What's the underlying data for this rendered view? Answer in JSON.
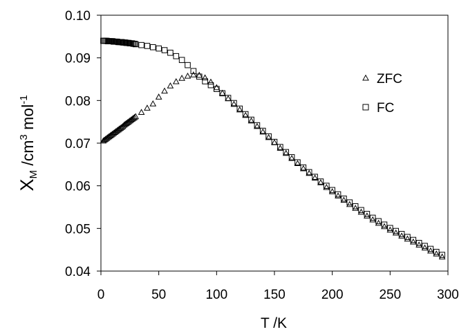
{
  "chart_data": {
    "type": "scatter",
    "title": "",
    "xlabel": "T /K",
    "ylabel": {
      "base": "X",
      "sub": "M",
      "mid": " /cm",
      "sup1": "3",
      "tail": "  mol",
      "sup2": "-1"
    },
    "xlim": [
      0,
      300
    ],
    "ylim": [
      0.04,
      0.1
    ],
    "x_ticks": [
      "0",
      "50",
      "100",
      "150",
      "200",
      "250",
      "300"
    ],
    "x_tick_values": [
      0,
      50,
      100,
      150,
      200,
      250,
      300
    ],
    "y_ticks": [
      "0.04",
      "0.05",
      "0.06",
      "0.07",
      "0.08",
      "0.09",
      "0.10"
    ],
    "y_tick_values": [
      0.04,
      0.05,
      0.06,
      0.07,
      0.08,
      0.09,
      0.1
    ],
    "grid": false,
    "legend_position": "right",
    "series": [
      {
        "name": "ZFC",
        "marker": "triangle",
        "x": [
          2,
          3,
          4,
          5,
          6,
          7,
          8,
          9,
          10,
          11,
          12,
          13,
          14,
          15,
          16,
          17,
          18,
          19,
          20,
          21,
          22,
          23,
          24,
          25,
          26,
          27,
          28,
          29,
          30,
          35,
          40,
          45,
          50,
          55,
          60,
          65,
          70,
          75,
          80,
          85,
          90,
          95,
          100,
          105,
          110,
          115,
          120,
          125,
          130,
          135,
          140,
          145,
          150,
          155,
          160,
          165,
          170,
          175,
          180,
          185,
          190,
          195,
          200,
          205,
          210,
          215,
          220,
          225,
          230,
          235,
          240,
          245,
          250,
          255,
          260,
          265,
          270,
          275,
          280,
          285,
          290,
          295
        ],
        "y": [
          0.0705,
          0.0707,
          0.0709,
          0.0711,
          0.0713,
          0.0715,
          0.0717,
          0.0719,
          0.0721,
          0.0723,
          0.0725,
          0.0727,
          0.0729,
          0.0731,
          0.0733,
          0.0735,
          0.0737,
          0.0739,
          0.0742,
          0.0744,
          0.0746,
          0.0748,
          0.075,
          0.0752,
          0.0754,
          0.0756,
          0.0758,
          0.076,
          0.0762,
          0.0772,
          0.0782,
          0.0792,
          0.0808,
          0.0822,
          0.0834,
          0.0844,
          0.0852,
          0.0857,
          0.086,
          0.0859,
          0.0853,
          0.0843,
          0.083,
          0.0817,
          0.0804,
          0.0791,
          0.0778,
          0.0765,
          0.0752,
          0.0739,
          0.0726,
          0.0713,
          0.0701,
          0.0688,
          0.0676,
          0.0664,
          0.0652,
          0.064,
          0.0629,
          0.0618,
          0.0607,
          0.0596,
          0.0586,
          0.0576,
          0.0566,
          0.0556,
          0.0547,
          0.0538,
          0.0529,
          0.052,
          0.0512,
          0.0504,
          0.0496,
          0.0489,
          0.0482,
          0.0475,
          0.0468,
          0.0461,
          0.0454,
          0.0447,
          0.044,
          0.0433
        ]
      },
      {
        "name": "FC",
        "marker": "square",
        "x": [
          2,
          3,
          4,
          5,
          6,
          7,
          8,
          9,
          10,
          11,
          12,
          13,
          14,
          15,
          16,
          17,
          18,
          19,
          20,
          21,
          22,
          23,
          24,
          25,
          26,
          27,
          28,
          29,
          30,
          35,
          40,
          45,
          50,
          55,
          60,
          65,
          70,
          75,
          80,
          85,
          90,
          95,
          100,
          105,
          110,
          115,
          120,
          125,
          130,
          135,
          140,
          145,
          150,
          155,
          160,
          165,
          170,
          175,
          180,
          185,
          190,
          195,
          200,
          205,
          210,
          215,
          220,
          225,
          230,
          235,
          240,
          245,
          250,
          255,
          260,
          265,
          270,
          275,
          280,
          285,
          290,
          295
        ],
        "y": [
          0.094,
          0.094,
          0.094,
          0.094,
          0.0939,
          0.0939,
          0.0939,
          0.0939,
          0.0939,
          0.0938,
          0.0938,
          0.0938,
          0.0938,
          0.0937,
          0.0937,
          0.0937,
          0.0937,
          0.0936,
          0.0936,
          0.0936,
          0.0935,
          0.0935,
          0.0935,
          0.0934,
          0.0934,
          0.0934,
          0.0933,
          0.0933,
          0.0932,
          0.093,
          0.0928,
          0.0925,
          0.0922,
          0.0918,
          0.0912,
          0.0904,
          0.0895,
          0.0883,
          0.0869,
          0.0856,
          0.0845,
          0.0836,
          0.0827,
          0.0817,
          0.0806,
          0.0794,
          0.0781,
          0.0768,
          0.0755,
          0.0742,
          0.0729,
          0.0716,
          0.0703,
          0.0691,
          0.0679,
          0.0667,
          0.0655,
          0.0643,
          0.0632,
          0.0621,
          0.061,
          0.06,
          0.059,
          0.058,
          0.057,
          0.0561,
          0.0552,
          0.0543,
          0.0534,
          0.0525,
          0.0517,
          0.0509,
          0.0501,
          0.0494,
          0.0487,
          0.048,
          0.0473,
          0.0466,
          0.0459,
          0.0452,
          0.0445,
          0.0438
        ]
      }
    ]
  }
}
